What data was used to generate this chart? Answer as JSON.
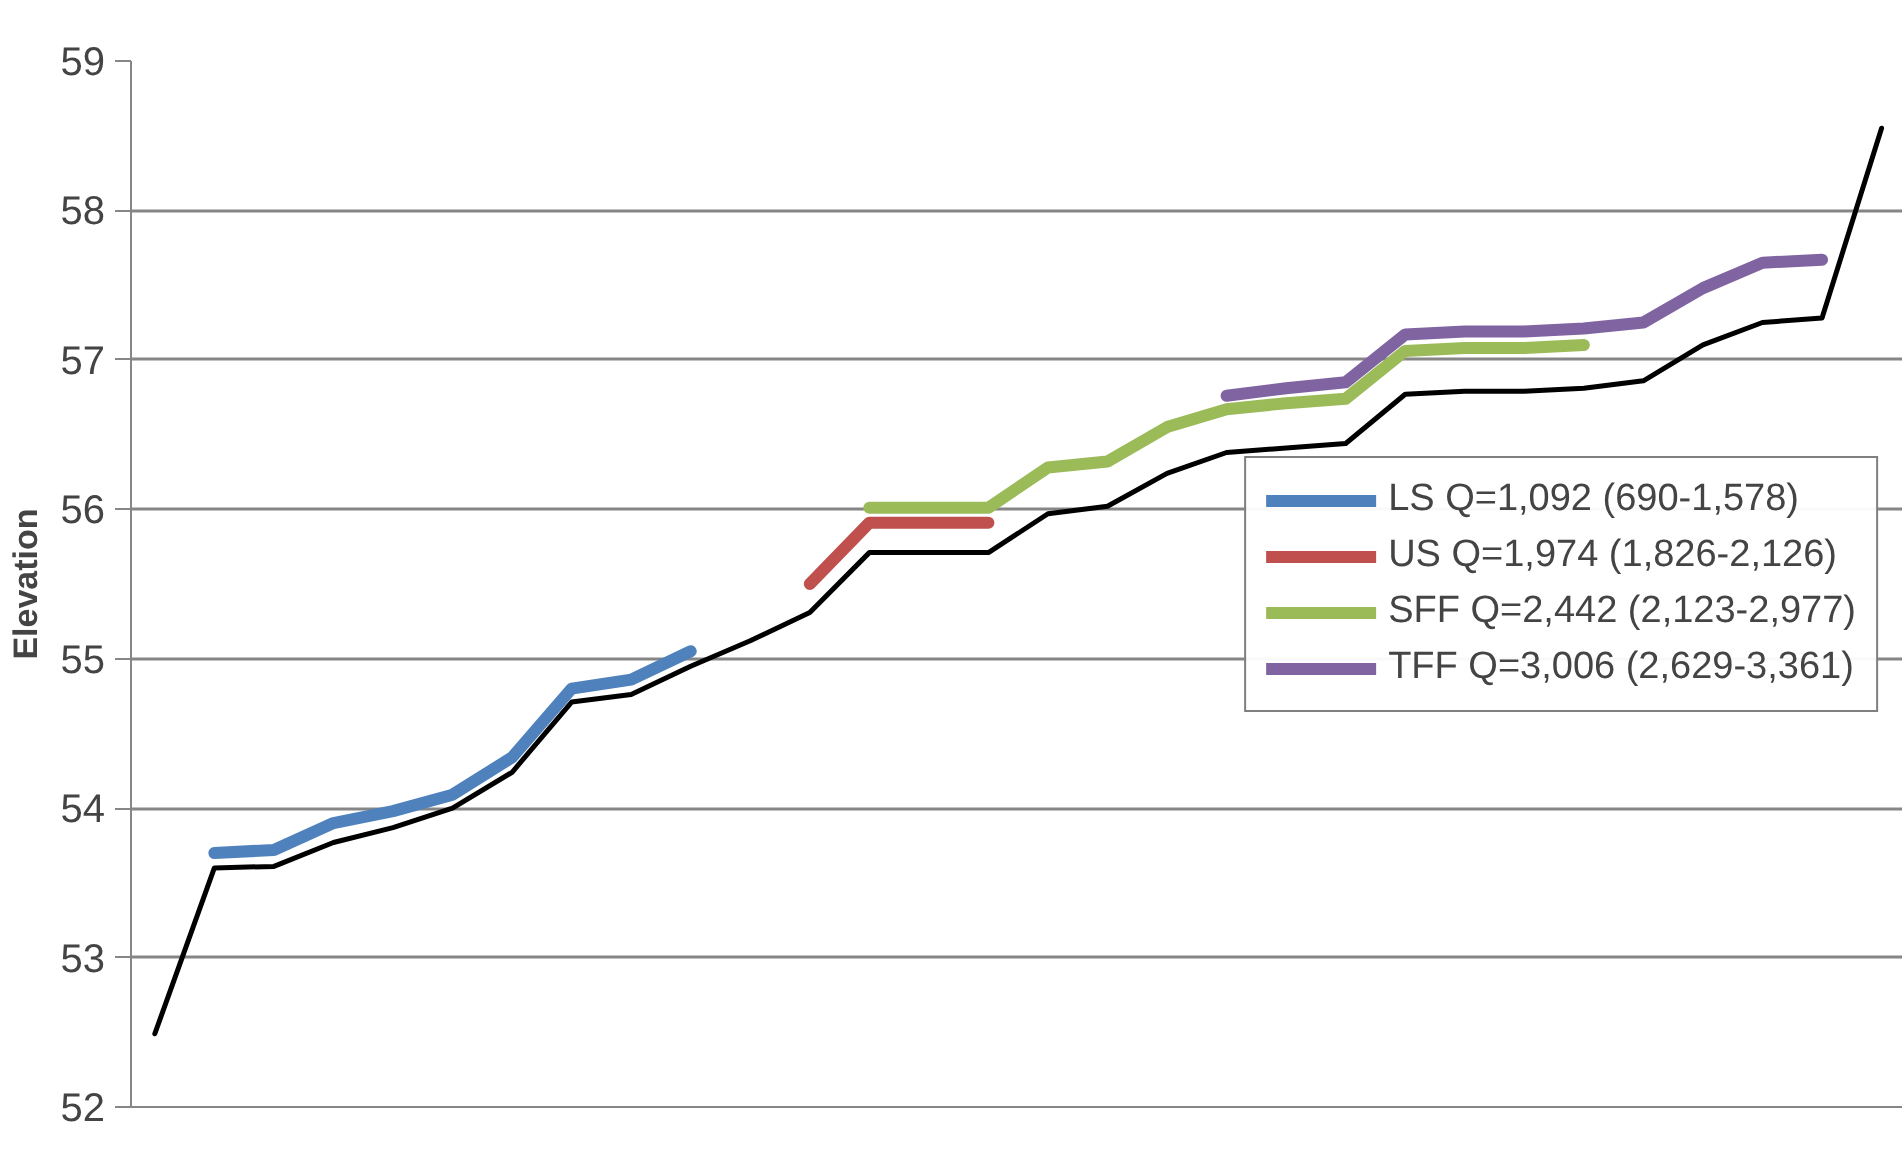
{
  "chart_data": {
    "type": "line",
    "ylabel": "Elevation",
    "categories": [
      null,
      null,
      null,
      null,
      null,
      null,
      null,
      null,
      null,
      null,
      null,
      null,
      null,
      null,
      null,
      null,
      null,
      null,
      null,
      null,
      null,
      null,
      null,
      null,
      null,
      null,
      null,
      null,
      null,
      null
    ],
    "ylim": [
      52,
      59
    ],
    "yticks": [
      52,
      53,
      54,
      55,
      56,
      57,
      58,
      59
    ],
    "grid": "y",
    "legend": "right",
    "tick_labels": "y",
    "marker": "none",
    "series": [
      {
        "color": "#000000",
        "values": [
          52.49,
          53.6,
          53.61,
          53.77,
          53.87,
          54.0,
          54.24,
          54.71,
          54.76,
          54.95,
          55.12,
          55.31,
          55.71,
          55.71,
          55.71,
          55.97,
          56.02,
          56.24,
          56.38,
          56.41,
          56.44,
          56.77,
          56.79,
          56.79,
          56.81,
          56.86,
          57.1,
          57.25,
          57.28,
          58.55
        ]
      },
      {
        "name": "LS Q=1,092 (690-1,578)",
        "color": "#4f81bd",
        "values": [
          null,
          53.7,
          53.72,
          53.9,
          53.98,
          54.09,
          54.34,
          54.8,
          54.86,
          55.05,
          null,
          null,
          null,
          null,
          null,
          null,
          null,
          null,
          null,
          null,
          null,
          null,
          null,
          null,
          null,
          null,
          null,
          null,
          null,
          null
        ]
      },
      {
        "name": "US Q=1,974 (1,826-2,126)",
        "color": "#c0504d",
        "values": [
          null,
          null,
          null,
          null,
          null,
          null,
          null,
          null,
          null,
          null,
          null,
          55.5,
          55.91,
          55.91,
          55.91,
          null,
          null,
          null,
          null,
          null,
          null,
          null,
          null,
          null,
          null,
          null,
          null,
          null,
          null,
          null
        ]
      },
      {
        "name": "SFF Q=2,442 (2,123-2,977)",
        "color": "#9bbb59",
        "values": [
          null,
          null,
          null,
          null,
          null,
          null,
          null,
          null,
          null,
          null,
          null,
          null,
          56.01,
          56.01,
          56.01,
          56.28,
          56.32,
          56.55,
          56.67,
          56.71,
          56.74,
          57.06,
          57.08,
          57.08,
          57.1,
          null,
          null,
          null,
          null,
          null
        ]
      },
      {
        "name": "TFF Q=3,006 (2,629-3,361)",
        "color": "#8064a2",
        "values": [
          null,
          null,
          null,
          null,
          null,
          null,
          null,
          null,
          null,
          null,
          null,
          null,
          null,
          null,
          null,
          null,
          null,
          null,
          56.76,
          56.81,
          56.85,
          57.17,
          57.19,
          57.19,
          57.21,
          57.25,
          57.48,
          57.65,
          57.67,
          null
        ]
      }
    ]
  }
}
